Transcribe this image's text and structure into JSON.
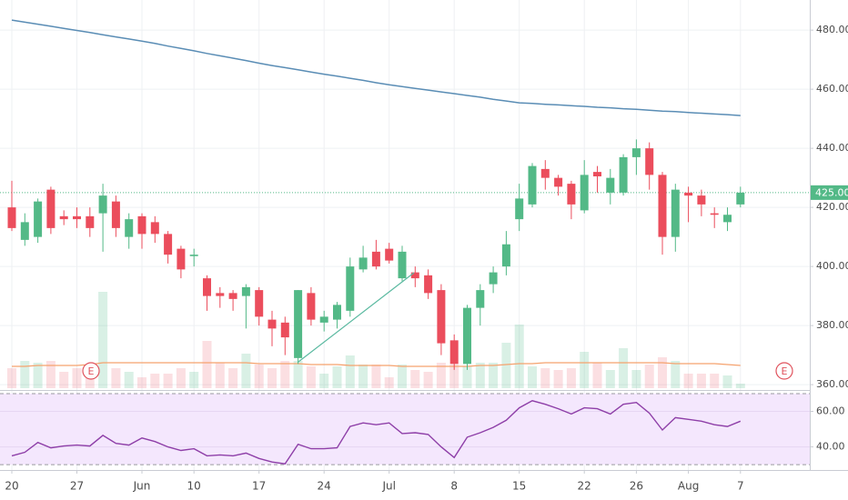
{
  "chart_data": [
    {
      "type": "candlestick",
      "categories": [
        "20",
        null,
        null,
        null,
        null,
        "27",
        null,
        null,
        null,
        null,
        "Jun",
        null,
        null,
        null,
        "10",
        null,
        null,
        null,
        null,
        "17",
        null,
        null,
        null,
        null,
        "24",
        null,
        null,
        null,
        null,
        "Jul",
        null,
        null,
        null,
        null,
        "8",
        null,
        null,
        null,
        null,
        "15",
        null,
        null,
        null,
        null,
        "22",
        null,
        null,
        null,
        "26",
        null,
        null,
        null,
        "Aug",
        null,
        null,
        null,
        "7"
      ],
      "open": [
        420,
        409,
        410,
        426,
        417,
        417,
        417,
        418,
        422,
        410,
        417,
        415,
        411,
        406,
        403.5,
        396,
        391,
        391,
        390,
        392,
        382,
        381,
        369,
        391,
        381,
        382,
        385,
        399,
        405,
        406,
        396,
        398,
        397,
        392,
        375,
        367,
        386,
        394,
        400,
        416,
        421,
        433,
        430,
        428,
        419,
        432,
        425,
        425,
        437,
        440,
        431,
        410,
        425,
        424,
        418,
        415,
        421
      ],
      "high": [
        429,
        418,
        423,
        427,
        419,
        420,
        420,
        428,
        424,
        418,
        418,
        417,
        412,
        407,
        406,
        397,
        393,
        392,
        394,
        393,
        385,
        383,
        392,
        393,
        385,
        388,
        403,
        407,
        409,
        408,
        407,
        400,
        399,
        394,
        377,
        387,
        394,
        400,
        412,
        428,
        435,
        436,
        431,
        429,
        436,
        434,
        433,
        438,
        443,
        442,
        432,
        428,
        427,
        426,
        420,
        420,
        427
      ],
      "low": [
        412,
        407,
        408,
        411,
        414,
        413,
        410,
        405,
        410,
        406,
        406,
        408,
        401,
        396,
        400,
        385,
        386,
        385,
        379,
        380,
        373,
        370,
        367,
        380,
        378,
        379,
        383,
        398,
        399,
        401,
        395,
        393,
        389,
        370,
        365,
        365,
        380,
        391,
        397,
        412,
        420,
        426,
        424,
        416,
        418,
        425,
        421,
        424,
        431,
        426,
        404,
        405,
        415,
        417,
        413,
        412,
        420
      ],
      "close": [
        413,
        415,
        422,
        413,
        416,
        416,
        413,
        424,
        413,
        416,
        411,
        411,
        404,
        399,
        404,
        390,
        390,
        389,
        393,
        383,
        379,
        376,
        392,
        382,
        383,
        387,
        400,
        403,
        400,
        402,
        405,
        396,
        391,
        374,
        367,
        386,
        392,
        398,
        407.5,
        423,
        434,
        430,
        427,
        421,
        431,
        430.5,
        430,
        437,
        440,
        431,
        410,
        426,
        424,
        421,
        417.5,
        417.5,
        425
      ],
      "volume": [
        22,
        30,
        28,
        30,
        18,
        22,
        24,
        106,
        22,
        18,
        12,
        16,
        16,
        22,
        18,
        52,
        28,
        22,
        38,
        26,
        22,
        30,
        30,
        24,
        16,
        24,
        36,
        26,
        26,
        12,
        26,
        20,
        18,
        28,
        26,
        24,
        28,
        28,
        50,
        70,
        24,
        22,
        20,
        22,
        40,
        28,
        20,
        44,
        20,
        26,
        34,
        30,
        16,
        16,
        16,
        14,
        5
      ],
      "volume_ma": [
        24,
        24,
        25,
        25,
        25,
        25,
        26,
        28,
        28,
        28,
        28,
        28,
        28,
        28,
        28,
        28,
        28,
        28,
        28,
        27,
        27,
        27,
        27,
        26,
        26,
        26,
        25,
        25,
        25,
        25,
        24,
        24,
        24,
        24,
        24,
        24,
        25,
        25,
        26,
        27,
        27,
        28,
        28,
        28,
        28,
        28,
        28,
        28,
        28,
        28,
        28,
        27,
        27,
        27,
        27,
        26,
        25
      ],
      "moving_average": [
        483.4,
        482.7,
        482.0,
        481.3,
        480.6,
        479.9,
        479.2,
        478.4,
        477.7,
        477.0,
        476.3,
        475.5,
        474.6,
        473.8,
        473.0,
        472.1,
        471.3,
        470.5,
        469.7,
        468.8,
        468.0,
        467.3,
        466.6,
        465.8,
        465.1,
        464.4,
        463.7,
        463.0,
        462.2,
        461.5,
        460.9,
        460.3,
        459.7,
        459.1,
        458.5,
        457.9,
        457.3,
        456.6,
        456.0,
        455.4,
        455.2,
        454.9,
        454.7,
        454.4,
        454.2,
        453.9,
        453.7,
        453.4,
        453.2,
        452.9,
        452.6,
        452.4,
        452.1,
        451.9,
        451.6,
        451.4,
        451.1
      ],
      "ylim": [
        358.8,
        490.2
      ],
      "yticks": [
        {
          "value": 360,
          "label": "360.00"
        },
        {
          "value": 380,
          "label": "380.00"
        },
        {
          "value": 400,
          "label": "400.00"
        },
        {
          "value": 420,
          "label": "420.00"
        },
        {
          "value": 440,
          "label": "440.00"
        },
        {
          "value": 460,
          "label": "460.00"
        },
        {
          "value": 480,
          "label": "480.00"
        }
      ],
      "price_line": {
        "value": 425,
        "label": "425.00"
      },
      "events": [
        "E",
        "E"
      ],
      "up_color": "#53b987",
      "down_color": "#eb4d5c",
      "ma_color": "#5a8db5",
      "volume_ma_color": "#f5a26e",
      "grid": true
    },
    {
      "type": "line",
      "values": [
        35,
        37,
        42.5,
        39.5,
        40.5,
        41,
        40.5,
        46.5,
        42,
        41,
        45,
        43,
        40,
        38,
        39,
        35,
        35.5,
        35,
        36.5,
        33.5,
        31.5,
        30.5,
        41.5,
        39,
        39,
        39.5,
        51.5,
        53.5,
        52.5,
        53.5,
        47.5,
        48,
        47,
        40,
        34,
        45.5,
        48,
        51,
        55,
        62,
        66,
        64,
        61.5,
        58.5,
        62,
        61.5,
        58.5,
        64,
        65,
        59,
        49.5,
        56.5,
        55.5,
        54.5,
        52.5,
        51.5,
        54.5
      ],
      "ylim": [
        27,
        70.5
      ],
      "yticks": [
        {
          "value": 40,
          "label": "40.00"
        },
        {
          "value": 60,
          "label": "60.00"
        }
      ],
      "band": [
        30,
        70
      ],
      "color": "#8e3fa8",
      "band_color": "#f4e7fd",
      "grid": true
    }
  ]
}
